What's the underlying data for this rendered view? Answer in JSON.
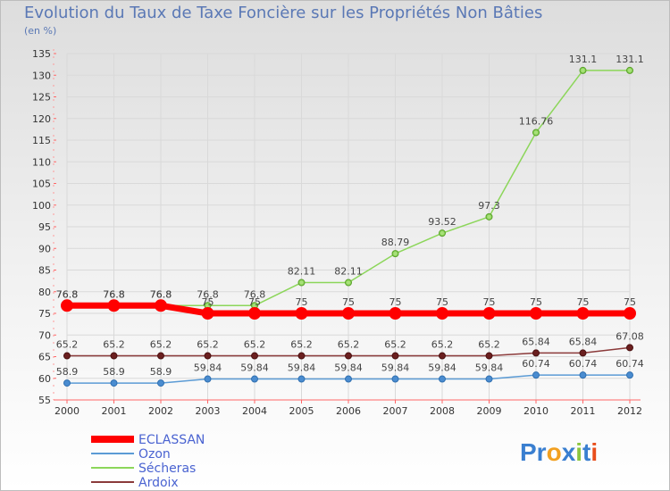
{
  "chart_data": {
    "type": "line",
    "title": "Evolution du Taux de Taxe Foncière sur les Propriétés Non Bâties",
    "ylabel": "(en %)",
    "xlabel": "",
    "categories": [
      "2000",
      "2001",
      "2002",
      "2003",
      "2004",
      "2005",
      "2006",
      "2007",
      "2008",
      "2009",
      "2010",
      "2011",
      "2012"
    ],
    "ylim": [
      55,
      135
    ],
    "yticks": [
      55,
      60,
      65,
      70,
      75,
      80,
      85,
      90,
      95,
      100,
      105,
      110,
      115,
      120,
      125,
      130,
      135
    ],
    "series": [
      {
        "name": "ECLASSAN",
        "color": "#ff0000",
        "values": [
          76.8,
          76.8,
          76.8,
          75,
          75,
          75,
          75,
          75,
          75,
          75,
          75,
          75,
          75
        ],
        "labels": [
          "76.8",
          "76.8",
          "76.8",
          "75",
          "75",
          "75",
          "75",
          "75",
          "75",
          "75",
          "75",
          "75",
          "75"
        ]
      },
      {
        "name": "Ozon",
        "color": "#5b9bd5",
        "values": [
          58.9,
          58.9,
          58.9,
          59.84,
          59.84,
          59.84,
          59.84,
          59.84,
          59.84,
          59.84,
          60.74,
          60.74,
          60.74
        ],
        "labels": [
          "58.9",
          "58.9",
          "58.9",
          "59.84",
          "59.84",
          "59.84",
          "59.84",
          "59.84",
          "59.84",
          "59.84",
          "60.74",
          "60.74",
          "60.74"
        ]
      },
      {
        "name": "Sécheras",
        "color": "#8cd65a",
        "values": [
          76.8,
          76.8,
          76.8,
          76.8,
          76.8,
          82.11,
          82.11,
          88.79,
          93.52,
          97.3,
          116.76,
          131.1,
          131.1
        ],
        "labels": [
          "76.8",
          "76.8",
          "76.8",
          "76.8",
          "76.8",
          "82.11",
          "82.11",
          "88.79",
          "93.52",
          "97.3",
          "116.76",
          "131.1",
          "131.1"
        ]
      },
      {
        "name": "Ardoix",
        "color": "#8b3a3a",
        "values": [
          65.2,
          65.2,
          65.2,
          65.2,
          65.2,
          65.2,
          65.2,
          65.2,
          65.2,
          65.2,
          65.84,
          65.84,
          67.08
        ],
        "labels": [
          "65.2",
          "65.2",
          "65.2",
          "65.2",
          "65.2",
          "65.2",
          "65.2",
          "65.2",
          "65.2",
          "65.2",
          "65.84",
          "65.84",
          "67.08"
        ]
      }
    ]
  },
  "logo": {
    "text": "Proxiti"
  }
}
